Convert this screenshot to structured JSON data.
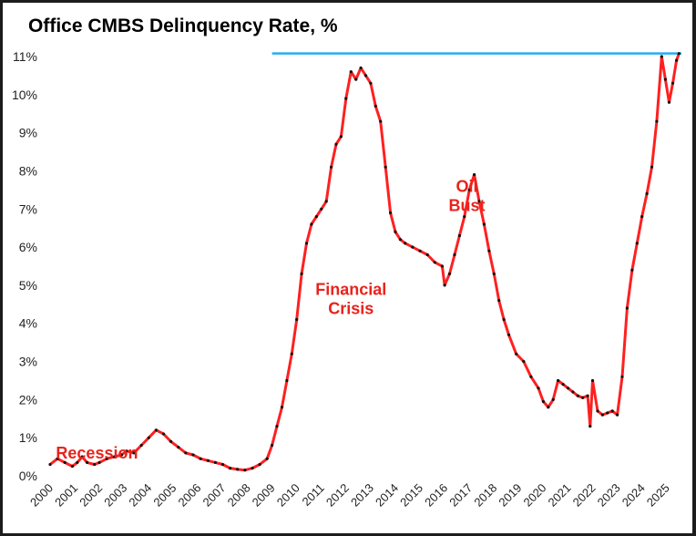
{
  "chart_data": {
    "type": "line",
    "title": "Office CMBS Delinquency Rate, %",
    "xlabel": "",
    "ylabel": "",
    "xlim": [
      2000,
      2025.6
    ],
    "ylim": [
      0,
      11
    ],
    "y_ticks": [
      "0%",
      "1%",
      "2%",
      "3%",
      "4%",
      "5%",
      "6%",
      "7%",
      "8%",
      "9%",
      "10%",
      "11%"
    ],
    "x_ticks": [
      "2000",
      "2001",
      "2002",
      "2003",
      "2004",
      "2005",
      "2006",
      "2007",
      "2008",
      "2009",
      "2010",
      "2011",
      "2012",
      "2013",
      "2014",
      "2015",
      "2016",
      "2017",
      "2018",
      "2019",
      "2020",
      "2021",
      "2022",
      "2023",
      "2024",
      "2025"
    ],
    "grid": false,
    "legend": "none",
    "series_color": "#ff2020",
    "marker_color": "#111111",
    "reference_line": {
      "y": 11.08,
      "x_start": 2009.0,
      "x_end": 2025.6,
      "color": "#22aef0"
    },
    "annotations": [
      {
        "text": "Recession",
        "x": 2001.9,
        "y": 0.45
      },
      {
        "text": "Financial",
        "x": 2012.2,
        "y": 4.75
      },
      {
        "text": "Crisis",
        "x": 2012.2,
        "y": 4.25
      },
      {
        "text": "Oil",
        "x": 2016.9,
        "y": 7.45
      },
      {
        "text": "Bust",
        "x": 2016.9,
        "y": 6.95
      }
    ],
    "series": [
      {
        "x": [
          2000.0,
          2000.3,
          2000.6,
          2000.9,
          2001.1,
          2001.3,
          2001.5,
          2001.8,
          2002.0,
          2002.3,
          2002.6,
          2002.9,
          2003.1,
          2003.4,
          2003.7,
          2004.0,
          2004.3,
          2004.6,
          2004.9,
          2005.2,
          2005.5,
          2005.8,
          2006.1,
          2006.4,
          2006.7,
          2007.0,
          2007.3,
          2007.6,
          2007.9,
          2008.2,
          2008.5,
          2008.8,
          2009.0,
          2009.2,
          2009.4,
          2009.6,
          2009.8,
          2010.0,
          2010.2,
          2010.4,
          2010.6,
          2010.8,
          2011.0,
          2011.2,
          2011.4,
          2011.6,
          2011.8,
          2012.0,
          2012.2,
          2012.4,
          2012.6,
          2012.8,
          2013.0,
          2013.2,
          2013.4,
          2013.6,
          2013.8,
          2014.0,
          2014.2,
          2014.4,
          2014.7,
          2015.0,
          2015.3,
          2015.6,
          2015.9,
          2016.0,
          2016.2,
          2016.4,
          2016.6,
          2016.8,
          2017.0,
          2017.2,
          2017.4,
          2017.6,
          2017.8,
          2018.0,
          2018.2,
          2018.4,
          2018.6,
          2018.9,
          2019.2,
          2019.5,
          2019.8,
          2020.0,
          2020.2,
          2020.4,
          2020.6,
          2020.8,
          2021.0,
          2021.2,
          2021.4,
          2021.6,
          2021.8,
          2021.9,
          2022.0,
          2022.2,
          2022.4,
          2022.6,
          2022.8,
          2023.0,
          2023.2,
          2023.4,
          2023.6,
          2023.8,
          2024.0,
          2024.2,
          2024.4,
          2024.6,
          2024.8,
          2024.95,
          2025.1,
          2025.25,
          2025.4,
          2025.5
        ],
        "y": [
          0.3,
          0.45,
          0.35,
          0.25,
          0.35,
          0.5,
          0.35,
          0.3,
          0.35,
          0.45,
          0.5,
          0.55,
          0.65,
          0.6,
          0.8,
          1.0,
          1.2,
          1.1,
          0.9,
          0.75,
          0.6,
          0.55,
          0.45,
          0.4,
          0.35,
          0.3,
          0.2,
          0.17,
          0.15,
          0.2,
          0.3,
          0.45,
          0.8,
          1.3,
          1.8,
          2.5,
          3.2,
          4.1,
          5.3,
          6.1,
          6.6,
          6.8,
          7.0,
          7.2,
          8.1,
          8.7,
          8.9,
          9.9,
          10.6,
          10.4,
          10.7,
          10.5,
          10.3,
          9.7,
          9.3,
          8.1,
          6.9,
          6.4,
          6.2,
          6.1,
          6.0,
          5.9,
          5.8,
          5.6,
          5.5,
          5.0,
          5.3,
          5.8,
          6.3,
          6.8,
          7.5,
          7.9,
          7.2,
          6.6,
          5.9,
          5.3,
          4.6,
          4.1,
          3.7,
          3.2,
          3.0,
          2.6,
          2.3,
          1.95,
          1.8,
          2.0,
          2.5,
          2.4,
          2.3,
          2.2,
          2.1,
          2.05,
          2.1,
          1.3,
          2.5,
          1.7,
          1.6,
          1.65,
          1.7,
          1.6,
          2.6,
          4.4,
          5.4,
          6.1,
          6.8,
          7.4,
          8.1,
          9.3,
          11.0,
          10.4,
          9.8,
          10.3,
          10.9,
          11.08
        ]
      }
    ]
  }
}
